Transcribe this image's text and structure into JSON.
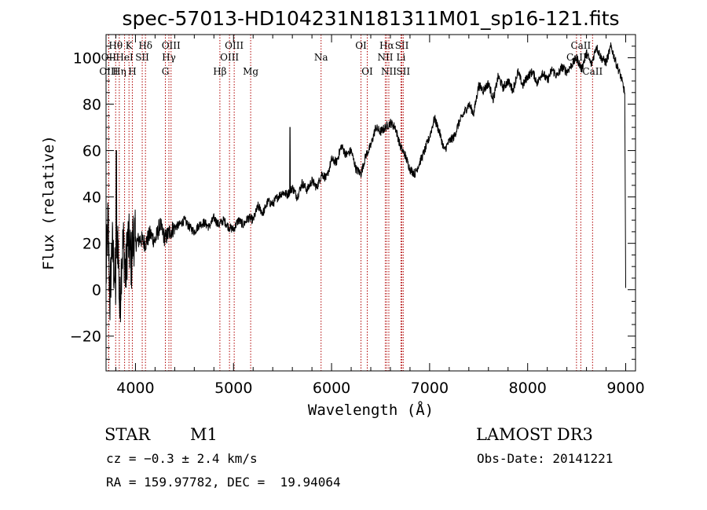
{
  "chart_data": {
    "type": "line",
    "title": "spec-57013-HD104231N181311M01_sp16-121.fits",
    "xlabel": "Wavelength (Å)",
    "ylabel": "Flux (relative)",
    "xlim": [
      3700,
      9100
    ],
    "ylim": [
      -35,
      110
    ],
    "xticks": [
      4000,
      5000,
      6000,
      7000,
      8000,
      9000
    ],
    "yticks": [
      -20,
      0,
      20,
      40,
      60,
      80,
      100
    ],
    "ytick_labels": [
      "−20",
      "0",
      "20",
      "40",
      "60",
      "80",
      "100"
    ],
    "series": [
      {
        "name": "flux",
        "x": [
          3700,
          3720,
          3740,
          3760,
          3780,
          3800,
          3820,
          3840,
          3860,
          3880,
          3900,
          3920,
          3940,
          3960,
          3980,
          4000,
          4050,
          4100,
          4150,
          4200,
          4250,
          4300,
          4350,
          4400,
          4450,
          4500,
          4550,
          4600,
          4650,
          4700,
          4750,
          4800,
          4850,
          4900,
          4950,
          5000,
          5050,
          5100,
          5150,
          5200,
          5250,
          5300,
          5350,
          5400,
          5450,
          5500,
          5550,
          5600,
          5650,
          5700,
          5750,
          5800,
          5850,
          5900,
          5950,
          6000,
          6050,
          6100,
          6150,
          6200,
          6250,
          6300,
          6350,
          6400,
          6450,
          6500,
          6550,
          6600,
          6650,
          6700,
          6750,
          6800,
          6850,
          6900,
          6950,
          7000,
          7050,
          7100,
          7150,
          7200,
          7250,
          7300,
          7350,
          7400,
          7450,
          7500,
          7550,
          7600,
          7650,
          7700,
          7750,
          7800,
          7850,
          7900,
          7950,
          8000,
          8050,
          8100,
          8150,
          8200,
          8250,
          8300,
          8350,
          8400,
          8450,
          8500,
          8550,
          8600,
          8650,
          8700,
          8750,
          8800,
          8850,
          8900,
          8950,
          8990,
          9000
        ],
        "y": [
          5,
          30,
          -5,
          20,
          10,
          0,
          25,
          -10,
          15,
          20,
          5,
          22,
          18,
          12,
          25,
          20,
          22,
          20,
          24,
          21,
          28,
          22,
          25,
          27,
          28,
          30,
          27,
          25,
          28,
          29,
          27,
          31,
          28,
          30,
          27,
          26,
          30,
          28,
          31,
          30,
          36,
          33,
          38,
          37,
          40,
          42,
          41,
          44,
          40,
          46,
          43,
          47,
          44,
          50,
          48,
          56,
          55,
          62,
          58,
          60,
          52,
          50,
          58,
          62,
          70,
          68,
          70,
          72,
          70,
          62,
          58,
          52,
          50,
          55,
          60,
          66,
          74,
          68,
          60,
          64,
          66,
          72,
          76,
          80,
          76,
          88,
          86,
          89,
          82,
          92,
          87,
          90,
          86,
          94,
          88,
          92,
          94,
          89,
          94,
          90,
          95,
          92,
          96,
          94,
          97,
          100,
          95,
          102,
          97,
          105,
          100,
          98,
          105,
          98,
          92,
          85,
          0
        ]
      }
    ],
    "spectral_lines": [
      {
        "name": "Hθ",
        "wl": 3798,
        "row": 1
      },
      {
        "name": "OII",
        "wl": 3727,
        "row": 2
      },
      {
        "name": "OIII",
        "wl": 3727,
        "row": 3
      },
      {
        "name": "K",
        "wl": 3934,
        "row": 1
      },
      {
        "name": "HeI",
        "wl": 3889,
        "row": 2
      },
      {
        "name": "Hη",
        "wl": 3835,
        "row": 3
      },
      {
        "name": "SII",
        "wl": 4069,
        "row": 2
      },
      {
        "name": "H",
        "wl": 3968,
        "row": 3
      },
      {
        "name": "Hδ",
        "wl": 4102,
        "row": 1
      },
      {
        "name": "OIII",
        "wl": 4363,
        "row": 1
      },
      {
        "name": "Hγ",
        "wl": 4341,
        "row": 2
      },
      {
        "name": "G",
        "wl": 4305,
        "row": 3
      },
      {
        "name": "Hβ",
        "wl": 4861,
        "row": 3
      },
      {
        "name": "OIII",
        "wl": 5007,
        "row": 1
      },
      {
        "name": "OIII",
        "wl": 4959,
        "row": 2
      },
      {
        "name": "Mg",
        "wl": 5175,
        "row": 3
      },
      {
        "name": "Na",
        "wl": 5893,
        "row": 2
      },
      {
        "name": "OI",
        "wl": 6300,
        "row": 1
      },
      {
        "name": "OI",
        "wl": 6364,
        "row": 3
      },
      {
        "name": "Hα",
        "wl": 6563,
        "row": 1
      },
      {
        "name": "NII",
        "wl": 6548,
        "row": 2
      },
      {
        "name": "NII",
        "wl": 6584,
        "row": 3
      },
      {
        "name": "SII",
        "wl": 6717,
        "row": 1
      },
      {
        "name": "Li",
        "wl": 6708,
        "row": 2
      },
      {
        "name": "SII",
        "wl": 6731,
        "row": 3
      },
      {
        "name": "CaII",
        "wl": 8542,
        "row": 1
      },
      {
        "name": "CaII",
        "wl": 8498,
        "row": 2
      },
      {
        "name": "CaII",
        "wl": 8662,
        "row": 3
      }
    ]
  },
  "info": {
    "object_class": "STAR",
    "subclass": "M1",
    "survey": "LAMOST DR3",
    "cz": "cz = −0.3 ± 2.4 km/s",
    "obs_date": "Obs-Date: 20141221",
    "coords": "RA = 159.97782, DEC =  19.94064"
  }
}
